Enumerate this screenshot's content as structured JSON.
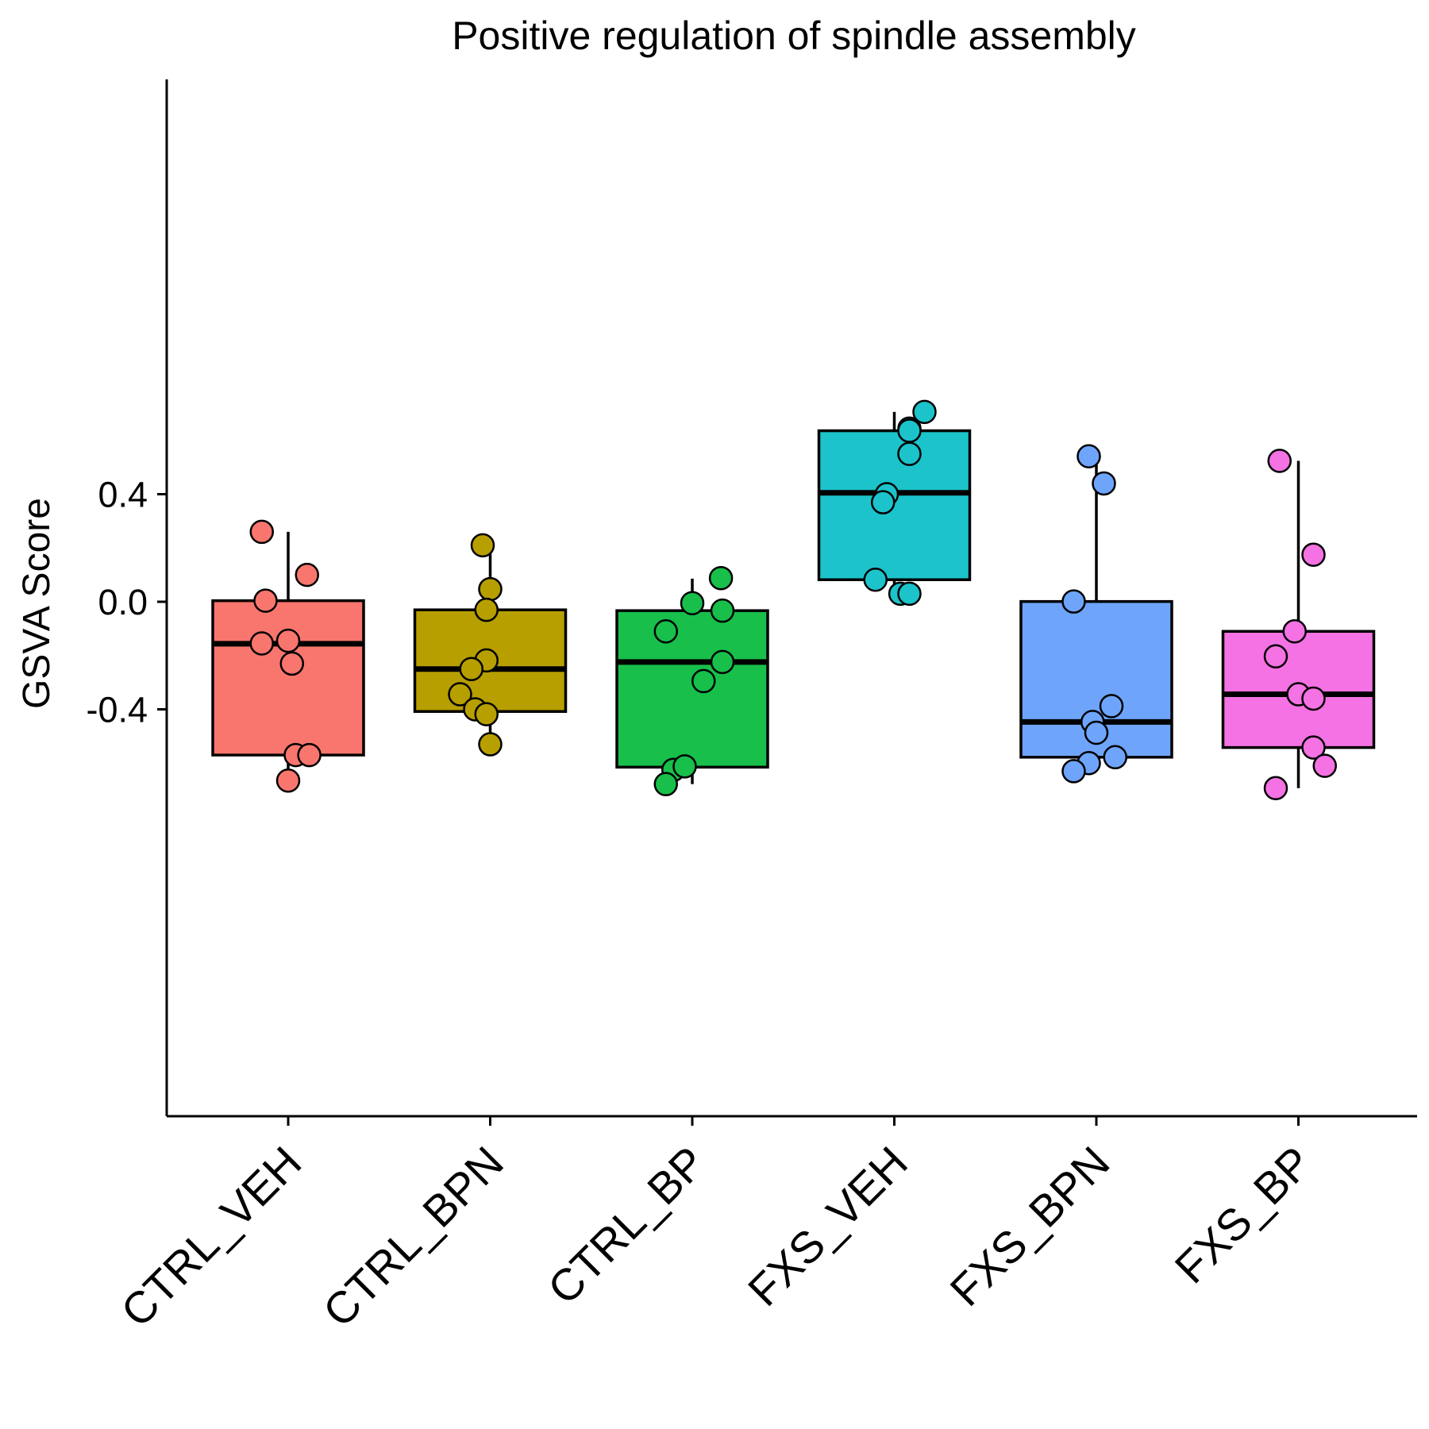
{
  "chart_data": {
    "type": "box",
    "title": "Positive regulation of spindle assembly",
    "xlabel": "",
    "ylabel": "GSVA Score",
    "ylim": [
      -0.76,
      0.77
    ],
    "yticks": [
      0.4,
      0.0,
      -0.4
    ],
    "ytick_labels": [
      "0.4",
      "0.0",
      "-0.4"
    ],
    "grid": false,
    "legend": "none",
    "categories": [
      "CTRL_VEH",
      "CTRL_BPN",
      "CTRL_BP",
      "FXS_VEH",
      "FXS_BPN",
      "FXS_BP"
    ],
    "groups": [
      {
        "name": "CTRL_VEH",
        "color": "#F8766D",
        "box": {
          "q1": -0.57,
          "median": -0.156,
          "q3": 0.004,
          "whisker_low": -0.665,
          "whisker_high": 0.26
        },
        "points": [
          [
            -0.35,
            0.26
          ],
          [
            0.25,
            0.1
          ],
          [
            -0.3,
            0.004
          ],
          [
            -0.35,
            -0.155
          ],
          [
            0.0,
            -0.145
          ],
          [
            0.05,
            -0.23
          ],
          [
            0.1,
            -0.57
          ],
          [
            0.28,
            -0.57
          ],
          [
            0.0,
            -0.665
          ]
        ]
      },
      {
        "name": "CTRL_BPN",
        "color": "#B79F00",
        "box": {
          "q1": -0.408,
          "median": -0.25,
          "q3": -0.03,
          "whisker_low": -0.53,
          "whisker_high": 0.21
        },
        "points": [
          [
            -0.1,
            0.21
          ],
          [
            0.0,
            0.047
          ],
          [
            -0.05,
            -0.03
          ],
          [
            -0.05,
            -0.218
          ],
          [
            -0.25,
            -0.25
          ],
          [
            -0.4,
            -0.344
          ],
          [
            -0.2,
            -0.4
          ],
          [
            -0.05,
            -0.418
          ],
          [
            0.0,
            -0.53
          ]
        ]
      },
      {
        "name": "CTRL_BP",
        "color": "#18BF4A",
        "box": {
          "q1": -0.615,
          "median": -0.224,
          "q3": -0.033,
          "whisker_low": -0.678,
          "whisker_high": 0.086
        },
        "points": [
          [
            0.38,
            0.088
          ],
          [
            0.0,
            -0.005
          ],
          [
            0.4,
            -0.033
          ],
          [
            -0.35,
            -0.11
          ],
          [
            0.4,
            -0.224
          ],
          [
            0.15,
            -0.295
          ],
          [
            -0.25,
            -0.625
          ],
          [
            -0.1,
            -0.612
          ],
          [
            -0.35,
            -0.678
          ]
        ]
      },
      {
        "name": "FXS_VEH",
        "color": "#1CC3CB",
        "box": {
          "q1": 0.082,
          "median": 0.405,
          "q3": 0.636,
          "whisker_low": 0.03,
          "whisker_high": 0.706
        },
        "points": [
          [
            0.4,
            0.706
          ],
          [
            0.2,
            0.644
          ],
          [
            0.2,
            0.636
          ],
          [
            0.2,
            0.55
          ],
          [
            -0.1,
            0.4
          ],
          [
            -0.15,
            0.37
          ],
          [
            -0.25,
            0.082
          ],
          [
            0.08,
            0.03
          ],
          [
            0.2,
            0.03
          ]
        ]
      },
      {
        "name": "FXS_BPN",
        "color": "#6EA5FB",
        "box": {
          "q1": -0.578,
          "median": -0.447,
          "q3": 0.001,
          "whisker_low": -0.63,
          "whisker_high": 0.541
        },
        "points": [
          [
            -0.1,
            0.541
          ],
          [
            0.1,
            0.44
          ],
          [
            -0.3,
            0.001
          ],
          [
            0.2,
            -0.388
          ],
          [
            -0.05,
            -0.447
          ],
          [
            0.0,
            -0.487
          ],
          [
            0.25,
            -0.578
          ],
          [
            -0.1,
            -0.6
          ],
          [
            -0.3,
            -0.63
          ]
        ]
      },
      {
        "name": "FXS_BP",
        "color": "#F472E3",
        "box": {
          "q1": -0.542,
          "median": -0.344,
          "q3": -0.11,
          "whisker_low": -0.693,
          "whisker_high": 0.524
        },
        "points": [
          [
            -0.25,
            0.524
          ],
          [
            0.2,
            0.175
          ],
          [
            -0.05,
            -0.11
          ],
          [
            -0.3,
            -0.203
          ],
          [
            0.0,
            -0.344
          ],
          [
            0.2,
            -0.36
          ],
          [
            0.2,
            -0.542
          ],
          [
            0.35,
            -0.61
          ],
          [
            -0.3,
            -0.693
          ]
        ]
      }
    ]
  }
}
